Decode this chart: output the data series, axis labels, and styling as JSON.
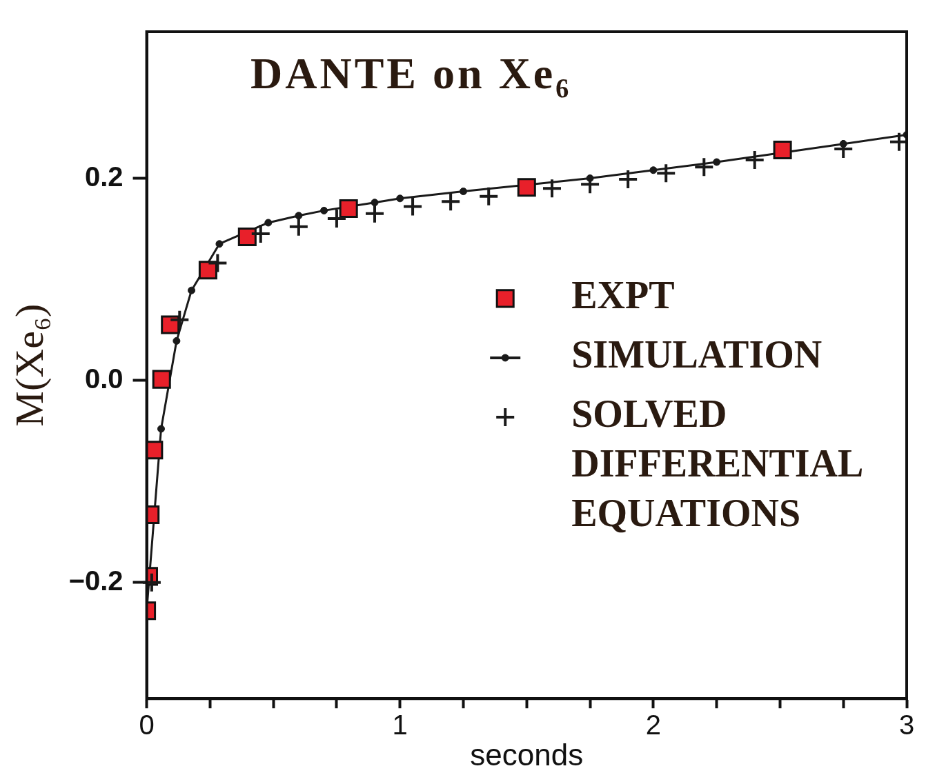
{
  "chart_data": {
    "type": "line",
    "title": "DANTE on Xe₆",
    "xlabel": "seconds",
    "ylabel": "M(Xe₆)",
    "xlim": [
      0,
      3
    ],
    "ylim": [
      -0.315,
      0.345
    ],
    "xticks": [
      0,
      {
        "value": 0.25,
        "label": null
      },
      {
        "value": 0.5,
        "label": null
      },
      {
        "value": 0.75,
        "label": null
      },
      1,
      {
        "value": 1.25,
        "label": null
      },
      {
        "value": 1.5,
        "label": null
      },
      {
        "value": 1.75,
        "label": null
      },
      2,
      {
        "value": 2.25,
        "label": null
      },
      {
        "value": 2.5,
        "label": null
      },
      {
        "value": 2.75,
        "label": null
      },
      3
    ],
    "yticks": [
      {
        "value": -0.2,
        "label": "−0.2"
      },
      {
        "value": 0,
        "label": "0.0"
      },
      0.2
    ],
    "grid": false,
    "legend": "right",
    "series": [
      {
        "name": "EXPT",
        "type": "scatter",
        "marker": "square",
        "color": "#e8202a",
        "x": [
          0,
          0.008,
          0.014,
          0.028,
          0.059,
          0.093,
          0.242,
          0.397,
          0.797,
          1.5,
          2.51
        ],
        "values": [
          -0.228,
          -0.194,
          -0.133,
          -0.069,
          0.001,
          0.055,
          0.109,
          0.142,
          0.17,
          0.191,
          0.228
        ]
      },
      {
        "name": "SIMULATION",
        "type": "line",
        "marker": "circle",
        "color": "#1a1a1a",
        "x": [
          0,
          0.057,
          0.118,
          0.177,
          0.287,
          0.48,
          0.6,
          0.7,
          0.9,
          1.0,
          1.25,
          1.75,
          2.0,
          2.25,
          2.75,
          3.0
        ],
        "values": [
          -0.228,
          -0.048,
          0.039,
          0.089,
          0.135,
          0.156,
          0.163,
          0.168,
          0.176,
          0.18,
          0.187,
          0.2,
          0.208,
          0.216,
          0.234,
          0.243
        ]
      },
      {
        "name": "SOLVED DIFFERENTIAL EQUATIONS",
        "type": "scatter",
        "marker": "cross",
        "color": "#1a1a1a",
        "x": [
          0.02,
          0.13,
          0.28,
          0.45,
          0.6,
          0.75,
          0.9,
          1.05,
          1.2,
          1.35,
          1.6,
          1.75,
          1.9,
          2.05,
          2.2,
          2.4,
          2.75,
          2.97
        ],
        "values": [
          -0.2,
          0.06,
          0.116,
          0.145,
          0.152,
          0.16,
          0.165,
          0.172,
          0.177,
          0.182,
          0.19,
          0.194,
          0.199,
          0.205,
          0.211,
          0.218,
          0.229,
          0.236
        ]
      }
    ]
  }
}
